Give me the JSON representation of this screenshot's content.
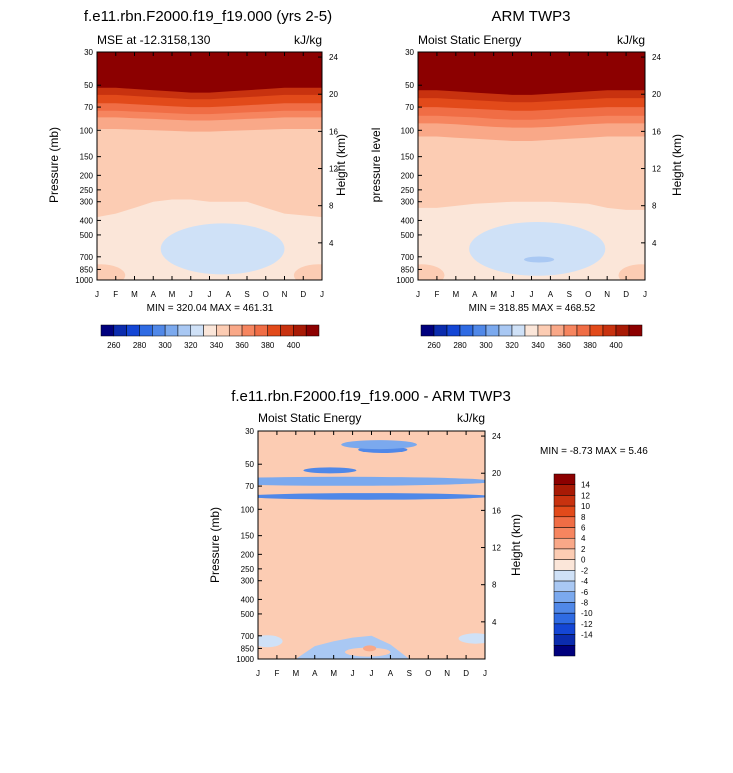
{
  "chart_data": [
    {
      "id": "p1",
      "type": "heatmap",
      "title": "f.e11.rbn.F2000.f19_f19.000 (yrs 2-5)",
      "left_label": "MSE at -12.3158,130",
      "right_label": "kJ/kg",
      "ylabel": "Pressure (mb)",
      "y2label": "Height (km)",
      "stats": "MIN = 320.04  MAX = 461.31",
      "months": [
        "J",
        "F",
        "M",
        "A",
        "M",
        "J",
        "J",
        "A",
        "S",
        "O",
        "N",
        "D",
        "J"
      ],
      "pressure_ticks": [
        "30",
        "50",
        "70",
        "100",
        "150",
        "200",
        "250",
        "300",
        "400",
        "500",
        "700",
        "850",
        "1000"
      ],
      "pressure_values": [
        30,
        50,
        70,
        100,
        150,
        200,
        250,
        300,
        400,
        500,
        700,
        850,
        1000
      ],
      "height_ticks": [
        "24",
        "20",
        "16",
        "12",
        "8",
        "4"
      ],
      "height_values": [
        24,
        20,
        16,
        12,
        8,
        4
      ],
      "colorbar_labels": [
        "260",
        "280",
        "300",
        "320",
        "340",
        "360",
        "380",
        "400"
      ],
      "ylim": [
        1000,
        30
      ],
      "layers": [
        {
          "color": "#fbe6d9",
          "p": [
            1000,
            1000,
            1000,
            1000,
            1000,
            1000,
            1000,
            1000,
            1000,
            1000,
            1000,
            1000,
            1000
          ]
        },
        {
          "color": "#fcccb3",
          "p": [
            380,
            360,
            330,
            300,
            290,
            290,
            300,
            300,
            300,
            330,
            360,
            370,
            380
          ]
        },
        {
          "color": "#f9a888",
          "p": [
            98,
            98,
            99,
            100,
            101,
            102,
            102,
            101,
            100,
            99,
            98,
            98,
            98
          ]
        },
        {
          "color": "#f6855f",
          "p": [
            82,
            82,
            83,
            84,
            85,
            86,
            86,
            85,
            84,
            83,
            82,
            82,
            82
          ]
        },
        {
          "color": "#f06d45",
          "p": [
            74,
            74,
            75,
            76,
            77,
            78,
            78,
            77,
            76,
            75,
            74,
            74,
            74
          ]
        },
        {
          "color": "#e24a1a",
          "p": [
            66,
            66,
            67,
            68,
            69,
            70,
            70,
            69,
            68,
            67,
            66,
            66,
            66
          ]
        },
        {
          "color": "#c8320f",
          "p": [
            58,
            58,
            59,
            60,
            61,
            62,
            62,
            61,
            60,
            59,
            58,
            58,
            58
          ]
        },
        {
          "color": "#8c0000",
          "p": [
            52,
            52,
            53,
            54,
            55,
            56,
            56,
            55,
            54,
            53,
            52,
            52,
            52
          ]
        }
      ],
      "blobs": [
        {
          "color": "#cfe1f7",
          "cx": 6.7,
          "cy": 620,
          "rx": 3.3,
          "ry": 1.7
        },
        {
          "color": "#fcccb3",
          "cx": 0.2,
          "cy": 930,
          "rx": 1.3,
          "ry": 1.15
        },
        {
          "color": "#fcccb3",
          "cx": 11.8,
          "cy": 930,
          "rx": 1.3,
          "ry": 1.15
        }
      ]
    },
    {
      "id": "p2",
      "type": "heatmap",
      "title": "ARM TWP3",
      "left_label": "Moist Static Energy",
      "right_label": "kJ/kg",
      "ylabel": "pressure level",
      "y2label": "Height (km)",
      "stats": "MIN = 318.85  MAX = 468.52",
      "months": [
        "J",
        "F",
        "M",
        "A",
        "M",
        "J",
        "J",
        "A",
        "S",
        "O",
        "N",
        "D",
        "J"
      ],
      "pressure_ticks": [
        "30",
        "50",
        "70",
        "100",
        "150",
        "200",
        "250",
        "300",
        "400",
        "500",
        "700",
        "850",
        "1000"
      ],
      "pressure_values": [
        30,
        50,
        70,
        100,
        150,
        200,
        250,
        300,
        400,
        500,
        700,
        850,
        1000
      ],
      "height_ticks": [
        "24",
        "20",
        "16",
        "12",
        "8",
        "4"
      ],
      "height_values": [
        24,
        20,
        16,
        12,
        8,
        4
      ],
      "colorbar_labels": [
        "260",
        "280",
        "300",
        "320",
        "340",
        "360",
        "380",
        "400"
      ],
      "ylim": [
        1000,
        30
      ],
      "layers": [
        {
          "color": "#fbe6d9",
          "p": [
            1000,
            1000,
            1000,
            1000,
            1000,
            1000,
            1000,
            1000,
            1000,
            1000,
            1000,
            1000,
            1000
          ]
        },
        {
          "color": "#fcccb3",
          "p": [
            330,
            330,
            320,
            310,
            305,
            300,
            300,
            300,
            305,
            310,
            330,
            340,
            340
          ]
        },
        {
          "color": "#f9a888",
          "p": [
            110,
            110,
            112,
            114,
            116,
            118,
            118,
            116,
            114,
            112,
            110,
            110,
            110
          ]
        },
        {
          "color": "#f6855f",
          "p": [
            90,
            90,
            91,
            93,
            95,
            96,
            96,
            95,
            93,
            91,
            90,
            90,
            90
          ]
        },
        {
          "color": "#f06d45",
          "p": [
            80,
            80,
            81,
            82,
            84,
            85,
            85,
            84,
            82,
            81,
            80,
            80,
            80
          ]
        },
        {
          "color": "#e24a1a",
          "p": [
            70,
            70,
            71,
            72,
            73,
            74,
            74,
            73,
            72,
            71,
            70,
            70,
            70
          ]
        },
        {
          "color": "#c8320f",
          "p": [
            61,
            61,
            62,
            63,
            64,
            65,
            65,
            64,
            63,
            62,
            61,
            61,
            61
          ]
        },
        {
          "color": "#8c0000",
          "p": [
            54,
            54,
            55,
            56,
            57,
            58,
            58,
            57,
            56,
            55,
            54,
            54,
            54
          ]
        }
      ],
      "blobs": [
        {
          "color": "#cfe1f7",
          "cx": 6.3,
          "cy": 620,
          "rx": 3.6,
          "ry": 1.8
        },
        {
          "color": "#a9c8f3",
          "cx": 6.4,
          "cy": 730,
          "rx": 0.8,
          "ry": 0.2
        },
        {
          "color": "#fcccb3",
          "cx": 0.2,
          "cy": 930,
          "rx": 1.2,
          "ry": 1.15
        },
        {
          "color": "#fcccb3",
          "cx": 11.8,
          "cy": 930,
          "rx": 1.2,
          "ry": 1.15
        }
      ]
    },
    {
      "id": "p3",
      "type": "heatmap",
      "title": "f.e11.rbn.F2000.f19_f19.000 - ARM TWP3",
      "left_label": "Moist Static Energy",
      "right_label": "kJ/kg",
      "ylabel": "Pressure (mb)",
      "y2label": "Height (km)",
      "stats": "MIN =  -8.73  MAX =   5.46",
      "months": [
        "J",
        "F",
        "M",
        "A",
        "M",
        "J",
        "J",
        "A",
        "S",
        "O",
        "N",
        "D",
        "J"
      ],
      "pressure_ticks": [
        "30",
        "50",
        "70",
        "100",
        "150",
        "200",
        "250",
        "300",
        "400",
        "500",
        "700",
        "850",
        "1000"
      ],
      "pressure_values": [
        30,
        50,
        70,
        100,
        150,
        200,
        250,
        300,
        400,
        500,
        700,
        850,
        1000
      ],
      "height_ticks": [
        "24",
        "20",
        "16",
        "12",
        "8",
        "4"
      ],
      "height_values": [
        24,
        20,
        16,
        12,
        8,
        4
      ],
      "colorbar_labels": [
        "14",
        "12",
        "10",
        "8",
        "6",
        "4",
        "2",
        "0",
        "-2",
        "-4",
        "-6",
        "-8",
        "-10",
        "-12",
        "-14"
      ],
      "ylim": [
        1000,
        30
      ],
      "layers": [
        {
          "color": "#a9c8f3",
          "p": [
            1000,
            1000,
            1000,
            1000,
            1000,
            1000,
            1000,
            1000,
            1000,
            1000,
            1000,
            1000,
            1000
          ]
        },
        {
          "color": "#cfe1f7",
          "p": [
            200,
            200,
            210,
            200,
            180,
            170,
            160,
            200,
            200,
            190,
            190,
            195,
            200
          ]
        },
        {
          "color": "#fbe6d9",
          "p": [
            1000,
            1000,
            480,
            430,
            410,
            420,
            470,
            560,
            1000,
            560,
            430,
            480,
            1000
          ]
        },
        {
          "color": "#fcccb3",
          "p": [
            1000,
            1000,
            1000,
            820,
            760,
            720,
            700,
            800,
            1000,
            1000,
            1000,
            1000,
            1000
          ]
        }
      ],
      "blobs": [
        {
          "color": "#7ba9ee",
          "cx": 4.5,
          "cy": 65,
          "rx": 8.0,
          "ry": 0.3
        },
        {
          "color": "#5088e8",
          "cx": 5.8,
          "cy": 82,
          "rx": 6.5,
          "ry": 0.22
        },
        {
          "color": "#5088e8",
          "cx": 6.6,
          "cy": 40,
          "rx": 1.3,
          "ry": 0.22
        },
        {
          "color": "#5088e8",
          "cx": 3.8,
          "cy": 55,
          "rx": 1.4,
          "ry": 0.2
        },
        {
          "color": "#7ba9ee",
          "cx": 6.4,
          "cy": 37,
          "rx": 2.0,
          "ry": 0.3
        },
        {
          "color": "#cfe1f7",
          "cx": 0.5,
          "cy": 760,
          "rx": 0.8,
          "ry": 0.4
        },
        {
          "color": "#cfe1f7",
          "cx": 11.5,
          "cy": 730,
          "rx": 0.9,
          "ry": 0.35
        },
        {
          "color": "#fcccb3",
          "cx": 5.8,
          "cy": 900,
          "rx": 1.2,
          "ry": 0.3
        },
        {
          "color": "#f9a888",
          "cx": 5.9,
          "cy": 850,
          "rx": 0.35,
          "ry": 0.2
        }
      ]
    }
  ],
  "colorbar_horizontal": {
    "colors": [
      "#00007d",
      "#0b2cae",
      "#1446d5",
      "#2f6be3",
      "#5088e8",
      "#7ba9ee",
      "#a9c8f3",
      "#cfe1f7",
      "#fbe6d9",
      "#fcccb3",
      "#f9a888",
      "#f6855f",
      "#f06d45",
      "#e24a1a",
      "#c8320f",
      "#a81a05",
      "#8c0000"
    ]
  },
  "colorbar_vertical": {
    "colors": [
      "#8c0000",
      "#a81a05",
      "#c8320f",
      "#e24a1a",
      "#f06d45",
      "#f6855f",
      "#f9a888",
      "#fcccb3",
      "#fbe6d9",
      "#cfe1f7",
      "#a9c8f3",
      "#7ba9ee",
      "#5088e8",
      "#2f6be3",
      "#1446d5",
      "#0b2cae",
      "#00007d"
    ]
  }
}
